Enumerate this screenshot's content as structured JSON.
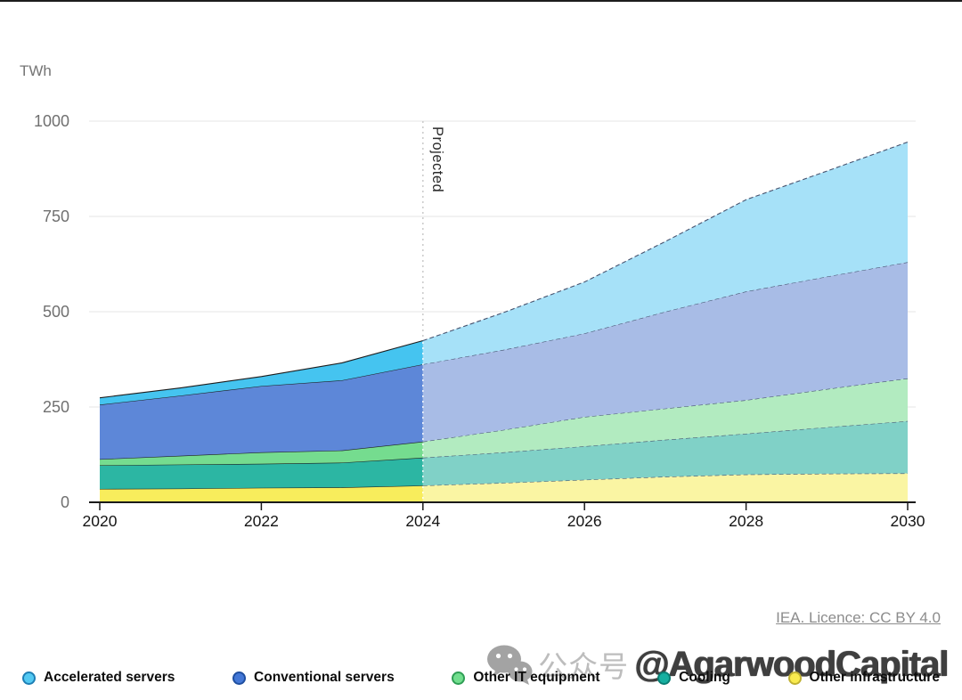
{
  "chart": {
    "unit_label": "TWh",
    "projected_label": "Projected",
    "y_ticks": [
      "1000",
      "750",
      "500",
      "250",
      "0"
    ],
    "x_ticks": [
      "2020",
      "2022",
      "2024",
      "2026",
      "2028",
      "2030"
    ]
  },
  "attribution": {
    "text": "IEA. Licence: CC BY 4.0"
  },
  "watermark": {
    "icon": "wechat-icon",
    "prefix": "公众号",
    "handle": "@AgarwoodCapital"
  },
  "legend": {
    "items": [
      {
        "label": "Accelerated servers",
        "fill": "#53C9F2",
        "ring": "#1e7fb5"
      },
      {
        "label": "Conventional servers",
        "fill": "#4377D6",
        "ring": "#1f4fa0"
      },
      {
        "label": "Other IT equipment",
        "fill": "#72DE8E",
        "ring": "#2f9e55"
      },
      {
        "label": "Cooling",
        "fill": "#16AFA0",
        "ring": "#0a7f74"
      },
      {
        "label": "Other infrastructure",
        "fill": "#F9EB4F",
        "ring": "#c0b232"
      }
    ]
  },
  "chart_data": {
    "type": "area",
    "stacked": true,
    "ylabel": "TWh",
    "ylim": [
      0,
      1000
    ],
    "y_gridlines": [
      250,
      500,
      750,
      1000
    ],
    "x": [
      2020,
      2021,
      2022,
      2023,
      2024,
      2025,
      2026,
      2027,
      2028,
      2029,
      2030
    ],
    "x_tick_years": [
      2020,
      2022,
      2024,
      2026,
      2028,
      2030
    ],
    "projection_start": 2024,
    "projection_label": "Projected",
    "stack_order": "bottom_to_top",
    "legend_position": "bottom",
    "grid": true,
    "series": [
      {
        "name": "Other infrastructure",
        "values": [
          35,
          36,
          38,
          39,
          44,
          51,
          59,
          67,
          73,
          75,
          76
        ],
        "color_historical": "#F8ED5C",
        "color_projected": "#FAF5A3"
      },
      {
        "name": "Cooling",
        "values": [
          62,
          63,
          63,
          65,
          73,
          80,
          88,
          97,
          107,
          122,
          137
        ],
        "color_historical": "#2CB6A3",
        "color_projected": "#80D1C7"
      },
      {
        "name": "Other IT equipment",
        "values": [
          16,
          23,
          30,
          32,
          42,
          59,
          77,
          82,
          88,
          100,
          112
        ],
        "color_historical": "#75DC8F",
        "color_projected": "#B2EBC0"
      },
      {
        "name": "Conventional servers",
        "values": [
          143,
          158,
          174,
          184,
          203,
          210,
          219,
          254,
          285,
          295,
          305
        ],
        "color_historical": "#5D87D8",
        "color_projected": "#A8BCE6"
      },
      {
        "name": "Accelerated servers",
        "values": [
          18,
          20,
          25,
          46,
          62,
          98,
          135,
          184,
          241,
          277,
          315
        ],
        "color_historical": "#45C4F0",
        "color_projected": "#A6E1F8"
      }
    ]
  }
}
